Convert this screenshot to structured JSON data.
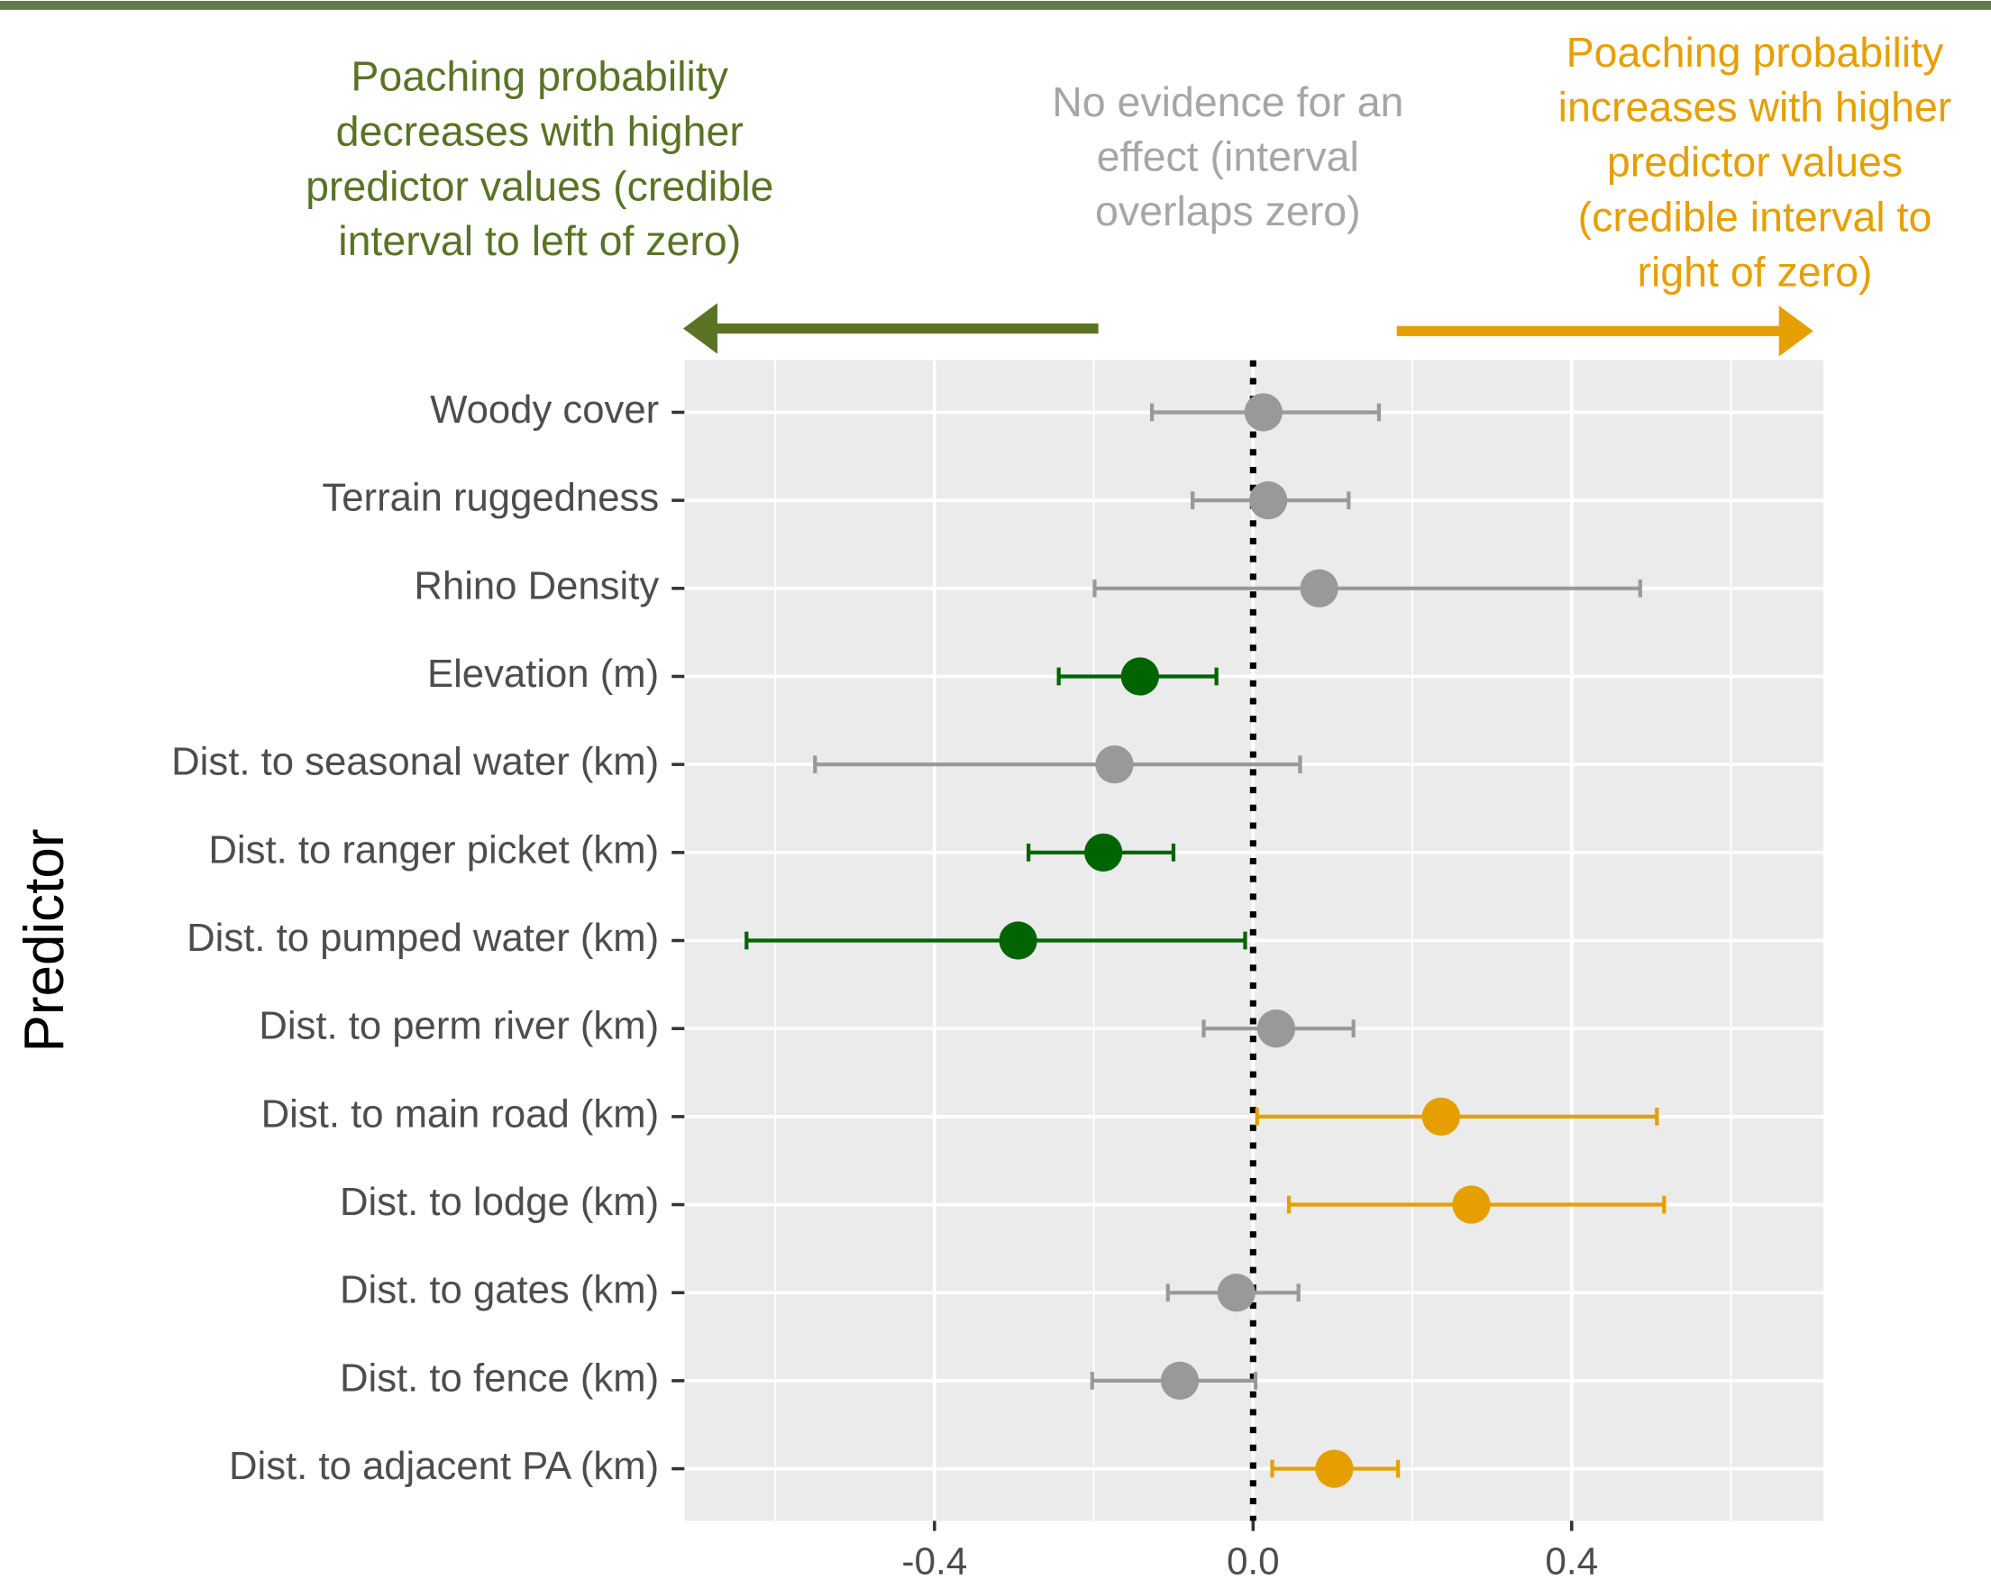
{
  "chart_data": {
    "type": "forest",
    "ylabel": "Predictor",
    "categories": [
      "Woody cover",
      "Terrain ruggedness",
      "Rhino Density",
      "Elevation (m)",
      "Dist. to seasonal water (km)",
      "Dist. to ranger picket (km)",
      "Dist. to pumped water (km)",
      "Dist. to perm river (km)",
      "Dist. to main road (km)",
      "Dist. to lodge (km)",
      "Dist. to gates (km)",
      "Dist. to fence (km)",
      "Dist. to adjacent PA (km)"
    ],
    "estimate": [
      0.013,
      0.019,
      0.083,
      -0.142,
      -0.174,
      -0.188,
      -0.295,
      0.029,
      0.236,
      0.274,
      -0.021,
      -0.092,
      0.102
    ],
    "lower": [
      -0.127,
      -0.076,
      -0.199,
      -0.244,
      -0.55,
      -0.282,
      -0.636,
      -0.062,
      0.005,
      0.045,
      -0.107,
      -0.202,
      0.024
    ],
    "upper": [
      0.158,
      0.12,
      0.486,
      -0.046,
      0.059,
      -0.1,
      -0.01,
      0.126,
      0.507,
      0.516,
      0.057,
      0.003,
      0.182
    ],
    "point_colors": [
      "#999999",
      "#999999",
      "#999999",
      "#006400",
      "#999999",
      "#006400",
      "#006400",
      "#999999",
      "#E69F00",
      "#E69F00",
      "#999999",
      "#999999",
      "#E69F00"
    ],
    "xlim": [
      -0.714,
      0.716
    ],
    "xticks": [
      {
        "value": -0.4,
        "label": "-0.4"
      },
      {
        "value": 0,
        "label": "0.0"
      },
      {
        "value": 0.4,
        "label": "0.4"
      }
    ],
    "xminor": [
      -0.6,
      -0.2,
      0.2,
      0.6
    ],
    "refline": 0,
    "grid": true,
    "annotations": [
      {
        "lines": [
          "Poaching probability",
          "decreases with higher",
          "predictor values (credible",
          "interval to left of zero)"
        ],
        "color": "#5a7324"
      },
      {
        "lines": [
          "No evidence for an",
          "effect (interval",
          "overlaps zero)"
        ],
        "color": "#a6a6a6"
      },
      {
        "lines": [
          "Poaching probability",
          "increases with higher",
          "predictor values",
          "(credible interval to",
          "right of zero)"
        ],
        "color": "#E69F00"
      }
    ]
  }
}
